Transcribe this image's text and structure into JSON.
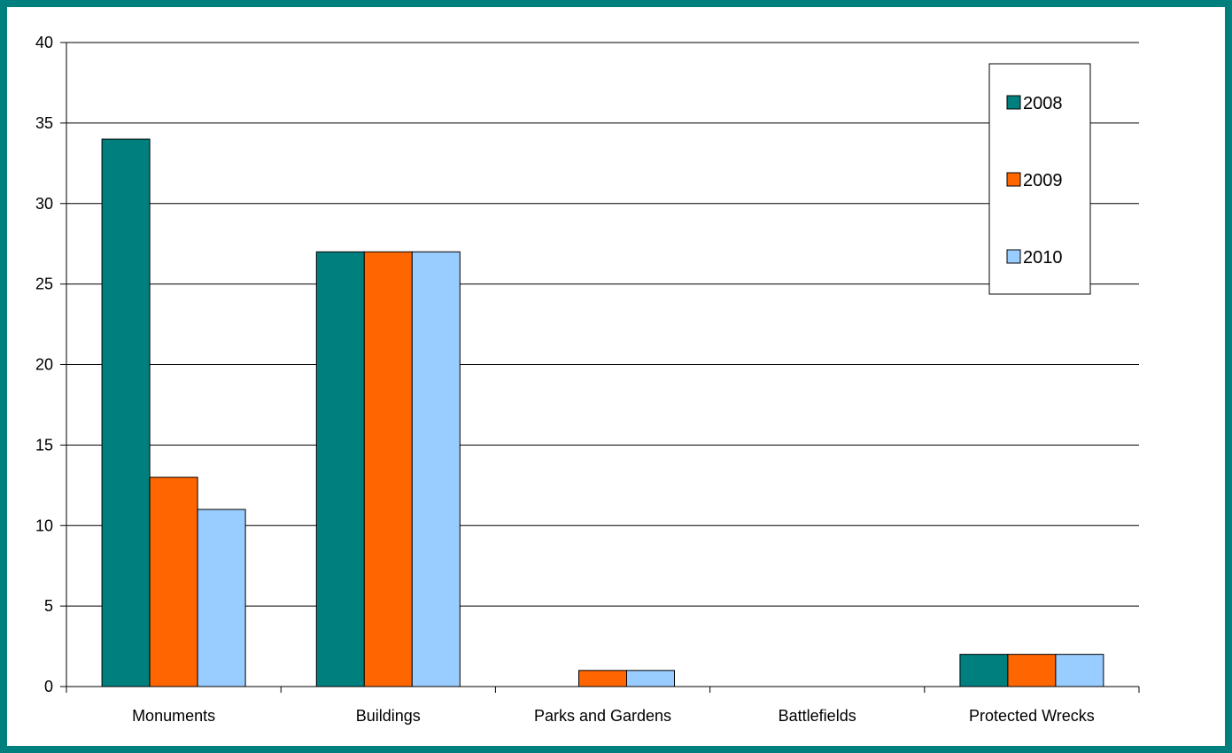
{
  "chart_data": {
    "type": "bar",
    "categories": [
      "Monuments",
      "Buildings",
      "Parks and Gardens",
      "Battlefields",
      "Protected Wrecks"
    ],
    "series": [
      {
        "name": "2008",
        "color": "#007f7f",
        "values": [
          34,
          27,
          0,
          0,
          2
        ]
      },
      {
        "name": "2009",
        "color": "#ff6600",
        "values": [
          13,
          27,
          1,
          0,
          2
        ]
      },
      {
        "name": "2010",
        "color": "#99ccff",
        "values": [
          11,
          27,
          1,
          0,
          2
        ]
      }
    ],
    "title": "",
    "xlabel": "",
    "ylabel": "",
    "ylim": [
      0,
      40
    ],
    "yticks": [
      0,
      5,
      10,
      15,
      20,
      25,
      30,
      35,
      40
    ],
    "grid": true,
    "legend_position": "top-right"
  }
}
